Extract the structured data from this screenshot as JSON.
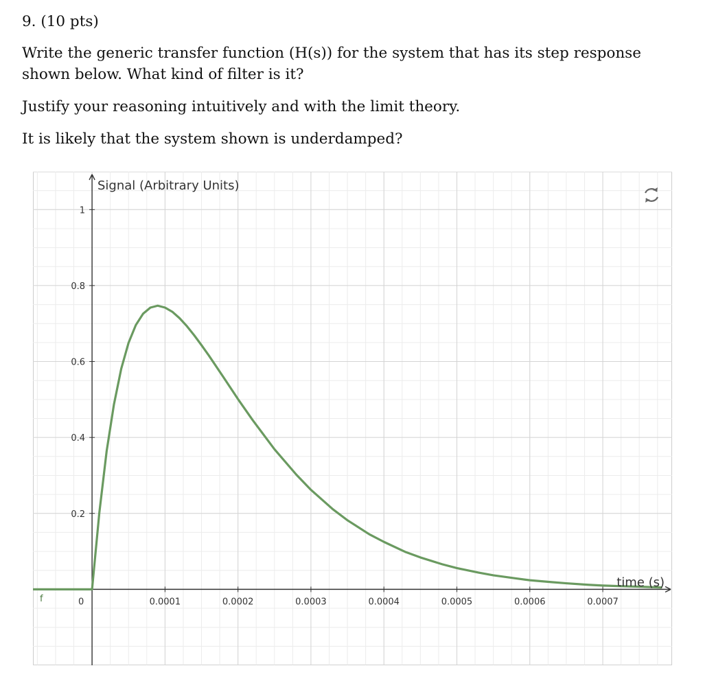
{
  "question": {
    "header": "9. (10 pts)",
    "prompt": "Write the generic transfer function (H(s)) for the system that has its step response shown below. What kind of filter is it?",
    "justify": "Justify your reasoning intuitively and with the limit theory.",
    "underdamped": "It is likely that the system shown is underdamped?"
  },
  "graph": {
    "function_label": "f",
    "reset_icon": "refresh-arrows-icon"
  },
  "chart_data": {
    "type": "line",
    "title": "",
    "xlabel": "time (s)",
    "ylabel": "Signal (Arbitrary Units)",
    "xlim": [
      -8.1e-05,
      0.000795
    ],
    "ylim": [
      -0.2,
      1.1
    ],
    "x_ticks": [
      0,
      0.0001,
      0.0002,
      0.0003,
      0.0004,
      0.0005,
      0.0006,
      0.0007
    ],
    "x_tick_labels": [
      "0",
      "0.0001",
      "0.0002",
      "0.0003",
      "0.0004",
      "0.0005",
      "0.0006",
      "0.0007"
    ],
    "y_ticks": [
      0.2,
      0.4,
      0.6,
      0.8,
      1
    ],
    "y_tick_labels": [
      "0.2",
      "0.4",
      "0.6",
      "0.8",
      "1"
    ],
    "grid": true,
    "color": "#6a9a60",
    "series": [
      {
        "x": [
          -8e-05,
          0,
          1e-05,
          2e-05,
          3e-05,
          4e-05,
          5e-05,
          6e-05,
          7e-05,
          8e-05,
          9e-05,
          0.0001,
          0.00011,
          0.00012,
          0.00013,
          0.00014,
          0.00015,
          0.00016,
          0.00018,
          0.0002,
          0.00022,
          0.00025,
          0.00028,
          0.0003,
          0.00033,
          0.00035,
          0.00038,
          0.0004,
          0.00043,
          0.00045,
          0.00048,
          0.0005,
          0.00053,
          0.00055,
          0.00058,
          0.0006,
          0.00063,
          0.00065,
          0.00068,
          0.0007,
          0.00073,
          0.00075,
          0.00078
        ],
        "y": [
          0,
          0,
          0.202,
          0.364,
          0.487,
          0.581,
          0.649,
          0.696,
          0.726,
          0.742,
          0.747,
          0.742,
          0.731,
          0.714,
          0.693,
          0.669,
          0.643,
          0.616,
          0.559,
          0.501,
          0.446,
          0.369,
          0.302,
          0.262,
          0.211,
          0.182,
          0.145,
          0.125,
          0.098,
          0.084,
          0.066,
          0.056,
          0.044,
          0.037,
          0.029,
          0.024,
          0.019,
          0.016,
          0.012,
          0.01,
          0.008,
          0.007,
          0.005
        ]
      }
    ]
  }
}
